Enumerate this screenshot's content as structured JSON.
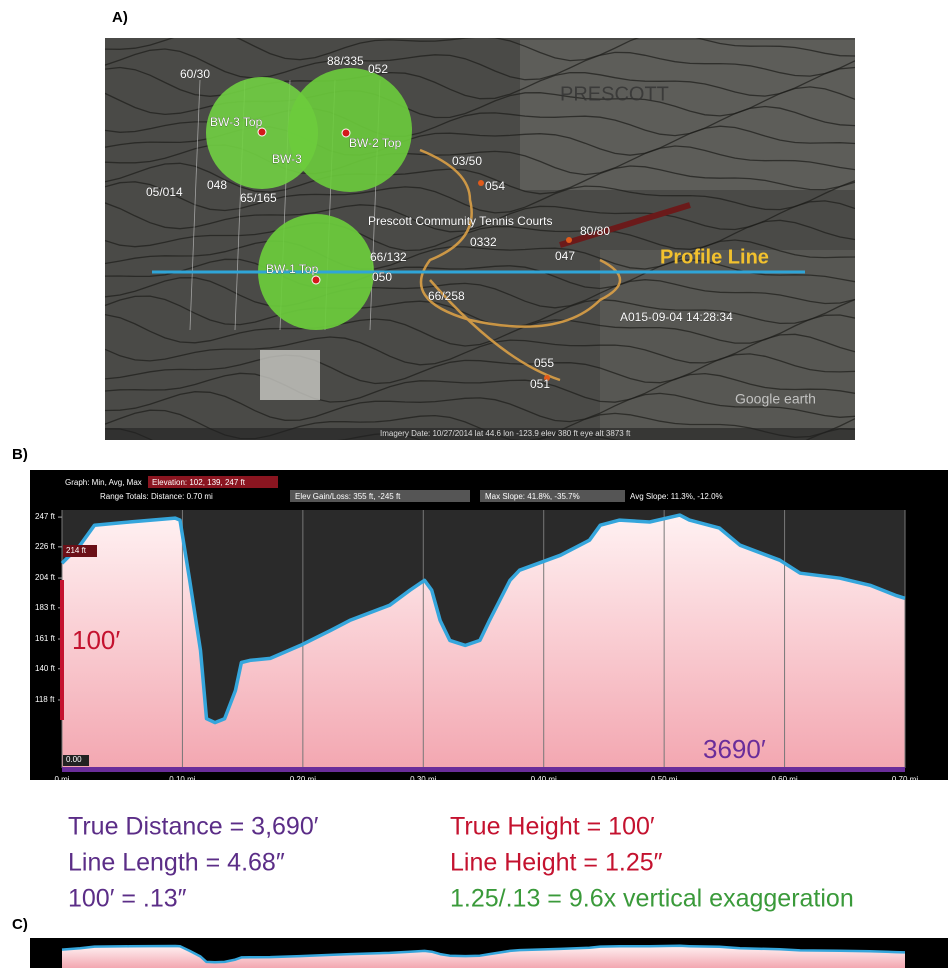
{
  "panels": {
    "a": "A)",
    "b": "B)",
    "c": "C)"
  },
  "map": {
    "labels": [
      "60/30",
      "88/335",
      "052",
      "BW-3 Top",
      "BW-2 Top",
      "BW-3",
      "03/50",
      "05/014",
      "048",
      "65/165",
      "054",
      "Prescott Community Tennis Courts",
      "80/80",
      "0332",
      "047",
      "66/132",
      "050",
      "BW-1 Top",
      "66/258",
      "A015-09-04 14:28:34",
      "055",
      "051",
      "PRESCOTT"
    ],
    "profile_label": "Profile Line",
    "attribution": "Google earth",
    "footer": "Imagery Date: 10/27/2014   lat 44.6   lon -123.9   elev 380 ft   eye alt 3873 ft"
  },
  "chart_data": [
    {
      "type": "line",
      "header": [
        "Graph: Min, Avg, Max",
        "Elevation: 102, 139, 247 ft",
        "Range Totals: Distance: 0.70 mi",
        "Elev Gain/Loss: 355 ft, -245 ft",
        "Max Slope: 41.8%, -35.7%",
        "Avg Slope: 11.3%, -12.0%"
      ],
      "marker_labels": [
        "214 ft",
        "0.00"
      ],
      "x": [
        0,
        0.015,
        0.027,
        0.056,
        0.094,
        0.098,
        0.106,
        0.115,
        0.12,
        0.127,
        0.135,
        0.144,
        0.149,
        0.156,
        0.173,
        0.198,
        0.223,
        0.239,
        0.272,
        0.289,
        0.301,
        0.307,
        0.314,
        0.322,
        0.335,
        0.347,
        0.355,
        0.372,
        0.38,
        0.414,
        0.438,
        0.447,
        0.463,
        0.488,
        0.513,
        0.521,
        0.546,
        0.563,
        0.596,
        0.613,
        0.646,
        0.671,
        0.692,
        0.7
      ],
      "values": [
        214.5,
        227.2,
        241.3,
        243.5,
        246.3,
        244.9,
        202.4,
        152.9,
        104.8,
        102,
        104.8,
        124.6,
        144.4,
        145.9,
        147.3,
        156.5,
        167.1,
        174.1,
        184.8,
        195.4,
        202.4,
        195.4,
        174.1,
        160,
        156.5,
        160,
        174.1,
        202.4,
        209.5,
        220.1,
        230.7,
        241.3,
        244.9,
        243.5,
        248.4,
        244.9,
        239.2,
        227.2,
        216.6,
        207.4,
        203.9,
        198.9,
        191.8,
        189.7
      ],
      "color": "#35a6dc",
      "xlim": [
        0,
        0.7
      ],
      "ylim": [
        70,
        252
      ],
      "xticks": [
        {
          "value": 0,
          "label": "0 mi"
        },
        {
          "value": 0.1,
          "label": "0.10 mi"
        },
        {
          "value": 0.2,
          "label": "0.20 mi"
        },
        {
          "value": 0.3,
          "label": "0.30 mi"
        },
        {
          "value": 0.4,
          "label": "0.40 mi"
        },
        {
          "value": 0.5,
          "label": "0.50 mi"
        },
        {
          "value": 0.6,
          "label": "0.60 mi"
        },
        {
          "value": 0.7,
          "label": "0.70 mi"
        }
      ],
      "yticks": [
        {
          "value": 247,
          "label": "247 ft"
        },
        {
          "value": 226,
          "label": "226 ft"
        },
        {
          "value": 204,
          "label": "204 ft"
        },
        {
          "value": 183,
          "label": "183 ft"
        },
        {
          "value": 161,
          "label": "161 ft"
        },
        {
          "value": 140,
          "label": "140 ft"
        },
        {
          "value": 118,
          "label": "118 ft"
        }
      ],
      "grid": true,
      "annotations": [
        "100′",
        "3690′"
      ]
    },
    {
      "type": "line",
      "xlim": [
        0,
        0.7
      ],
      "ylim": [
        50,
        300
      ]
    }
  ],
  "notes": {
    "left": [
      "True Distance = 3,690′",
      "Line Length = 4.68″",
      "100′ = .13″"
    ],
    "right": [
      "True Height = 100′",
      "Line Height = 1.25″",
      "1.25/.13 = 9.6x vertical exaggeration"
    ]
  }
}
